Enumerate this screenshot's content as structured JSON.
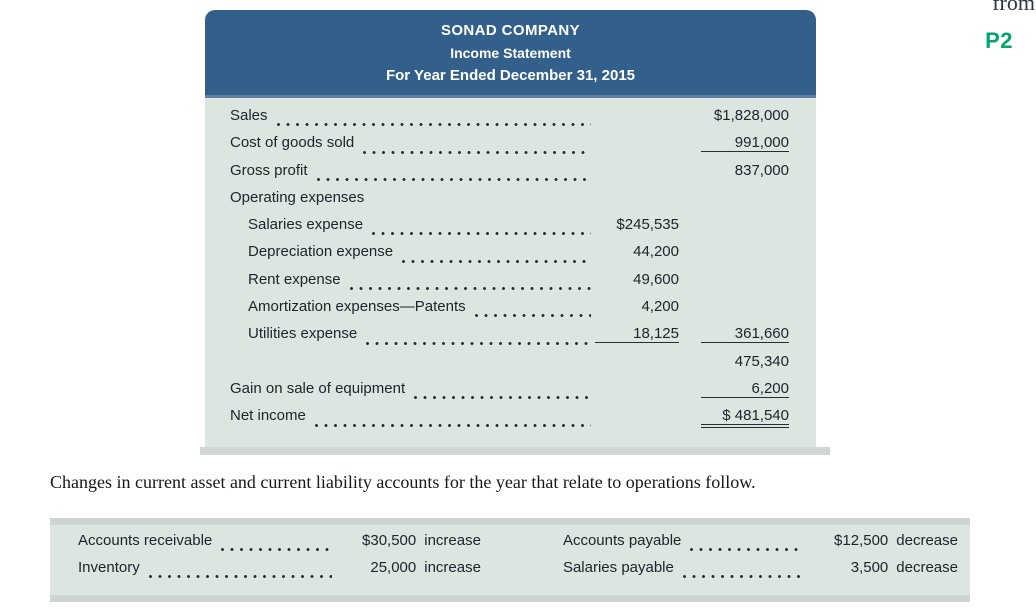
{
  "colors": {
    "header_bg": "#33608a",
    "panel_bg": "#dce5e0",
    "tag_green": "#00a56f"
  },
  "margin_note": {
    "partial_text": "from",
    "tag": "P2"
  },
  "income_statement": {
    "header": {
      "company": "SONAD COMPANY",
      "title": "Income Statement",
      "period": "For Year Ended December 31, 2015"
    },
    "rows": [
      {
        "label": "Sales",
        "col2": "$1,828,000"
      },
      {
        "label": "Cost of goods sold",
        "col2": "991,000"
      },
      {
        "label": "Gross profit",
        "col2": "837,000"
      },
      {
        "label": "Operating expenses"
      },
      {
        "label": "Salaries expense",
        "col1": "$245,535"
      },
      {
        "label": "Depreciation expense",
        "col1": "44,200"
      },
      {
        "label": "Rent expense",
        "col1": "49,600"
      },
      {
        "label": "Amortization expenses—Patents",
        "col1": "4,200"
      },
      {
        "label": "Utilities expense",
        "col1": "18,125",
        "col2": "361,660"
      },
      {
        "label": "",
        "col2": "475,340"
      },
      {
        "label": "Gain on sale of equipment",
        "col2": "6,200"
      },
      {
        "label": "Net income",
        "col2": "$ 481,540"
      }
    ]
  },
  "narrative": "Changes in current asset and current liability accounts for the year that relate to operations follow.",
  "changes_table": {
    "left": [
      {
        "label": "Accounts receivable",
        "amount": "$30,500",
        "direction": "increase"
      },
      {
        "label": "Inventory",
        "amount": "25,000",
        "direction": "increase"
      }
    ],
    "right": [
      {
        "label": "Accounts payable",
        "amount": "$12,500",
        "direction": "decrease"
      },
      {
        "label": "Salaries payable",
        "amount": "3,500",
        "direction": "decrease"
      }
    ]
  }
}
